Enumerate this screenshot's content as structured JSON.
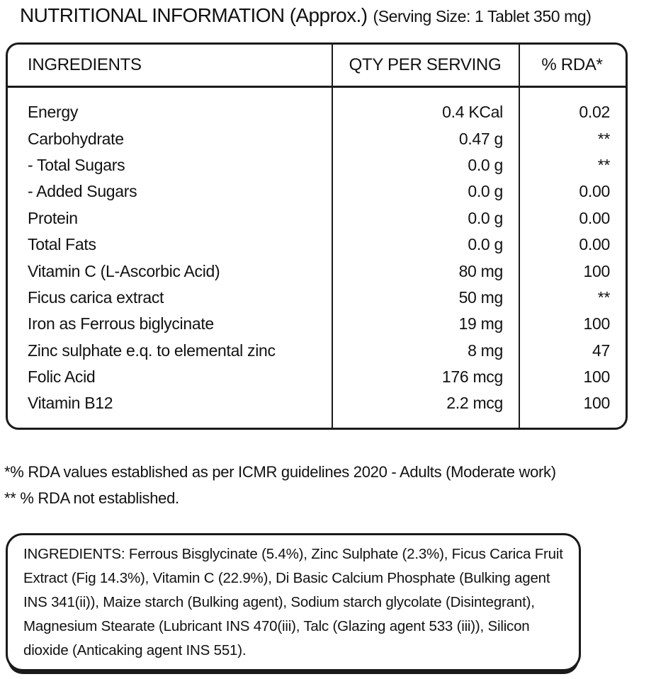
{
  "title": {
    "main": "NUTRITIONAL INFORMATION (Approx.)",
    "serving": "(Serving Size: 1 Tablet 350 mg)"
  },
  "table": {
    "headers": {
      "ingredients": "INGREDIENTS",
      "qty": "QTY PER SERVING",
      "rda": "% RDA*"
    },
    "rows": [
      {
        "ingredient": "Energy",
        "qty": "0.4 KCal",
        "rda": "0.02"
      },
      {
        "ingredient": "Carbohydrate",
        "qty": "0.47 g",
        "rda": "**"
      },
      {
        "ingredient": "- Total Sugars",
        "qty": "0.0 g",
        "rda": "**"
      },
      {
        "ingredient": "- Added Sugars",
        "qty": "0.0 g",
        "rda": "0.00"
      },
      {
        "ingredient": "Protein",
        "qty": "0.0 g",
        "rda": "0.00"
      },
      {
        "ingredient": "Total Fats",
        "qty": "0.0 g",
        "rda": "0.00"
      },
      {
        "ingredient": "Vitamin C (L-Ascorbic Acid)",
        "qty": "80 mg",
        "rda": "100"
      },
      {
        "ingredient": "Ficus carica extract",
        "qty": "50 mg",
        "rda": "**"
      },
      {
        "ingredient": "Iron as Ferrous biglycinate",
        "qty": "19 mg",
        "rda": "100"
      },
      {
        "ingredient": "Zinc sulphate e.q. to elemental zinc",
        "qty": "8 mg",
        "rda": "47"
      },
      {
        "ingredient": "Folic Acid",
        "qty": "176 mcg",
        "rda": "100"
      },
      {
        "ingredient": "Vitamin B12",
        "qty": "2.2 mcg",
        "rda": "100"
      }
    ]
  },
  "footnotes": {
    "rda_note": "*% RDA values established as per ICMR guidelines 2020 - Adults (Moderate work)",
    "not_established_note": "** % RDA not established."
  },
  "ingredients_box": {
    "text": "INGREDIENTS: Ferrous Bisglycinate (5.4%), Zinc Sulphate (2.3%), Ficus Carica Fruit Extract (Fig 14.3%), Vitamin C (22.9%), Di Basic Calcium Phosphate (Bulking agent INS 341(ii)), Maize starch (Bulking agent), Sodium starch glycolate (Disintegrant), Magnesium Stearate (Lubricant INS 470(iii), Talc (Glazing agent 533 (iii)), Silicon dioxide (Anticaking agent INS 551)."
  },
  "colors": {
    "text": "#111111",
    "border": "#1a1a1a",
    "background": "#ffffff"
  }
}
